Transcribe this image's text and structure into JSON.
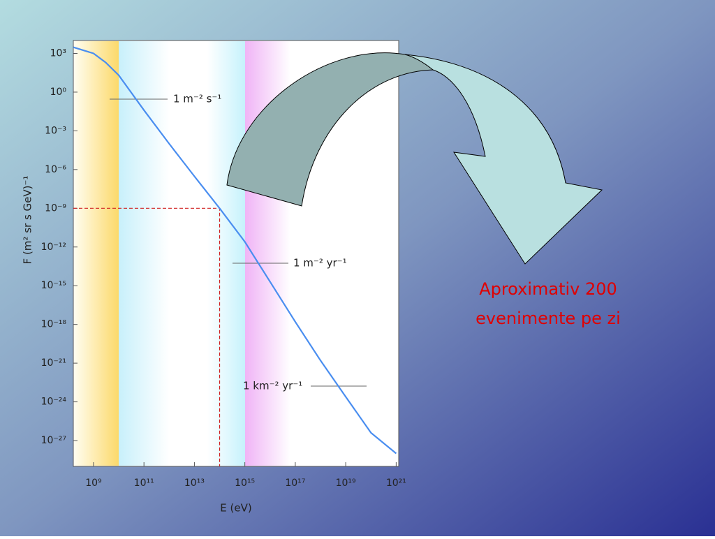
{
  "chart_data": {
    "type": "line",
    "x_label": "E (eV)",
    "y_label": "F (m² sr s GeV)⁻¹",
    "x_scale": "log",
    "y_scale": "log",
    "x": [
      160000000.0,
      1000000000.0,
      3000000000.0,
      10000000000.0,
      100000000000.0,
      1000000000000.0,
      10000000000000.0,
      100000000000000.0,
      1000000000000000.0,
      1e+16,
      1e+17,
      1e+18,
      1e+19,
      1e+20,
      1e+21
    ],
    "values": [
      3000,
      1000,
      200,
      20,
      0.04,
      0.0001,
      3e-07,
      1e-09,
      2.5e-12,
      2e-15,
      1.6e-18,
      1.6e-21,
      2.5e-24,
      4e-27,
      1e-28
    ],
    "color": "#4a8ef0",
    "xlim": [
      158000000.0,
      1.26e+21
    ],
    "ylim": [
      1e-29,
      10000.0
    ],
    "xticks": [
      {
        "value": 1000000000.0,
        "label": "10⁹"
      },
      {
        "value": 100000000000.0,
        "label": "10¹¹"
      },
      {
        "value": 10000000000000.0,
        "label": "10¹³"
      },
      {
        "value": 1000000000000000.0,
        "label": "10¹⁵"
      },
      {
        "value": 1e+17,
        "label": "10¹⁷"
      },
      {
        "value": 1e+19,
        "label": "10¹⁹"
      },
      {
        "value": 1e+21,
        "label": "10²¹"
      }
    ],
    "yticks": [
      {
        "value": 1000.0,
        "label": "10³"
      },
      {
        "value": 1,
        "label": "10⁰"
      },
      {
        "value": 0.001,
        "label": "10⁻³"
      },
      {
        "value": 1e-06,
        "label": "10⁻⁶"
      },
      {
        "value": 1e-09,
        "label": "10⁻⁹"
      },
      {
        "value": 1e-12,
        "label": "10⁻¹²"
      },
      {
        "value": 1e-15,
        "label": "10⁻¹⁵"
      },
      {
        "value": 1e-18,
        "label": "10⁻¹⁸"
      },
      {
        "value": 1e-21,
        "label": "10⁻²¹"
      },
      {
        "value": 1e-24,
        "label": "10⁻²⁴"
      },
      {
        "value": 1e-27,
        "label": "10⁻²⁷"
      }
    ],
    "marker": {
      "x": 100000000000000.0,
      "y": 1e-09,
      "color": "#d02020"
    },
    "annotations": [
      "1 m⁻² s⁻¹",
      "1 m⁻² yr⁻¹",
      "1 km⁻² yr⁻¹"
    ]
  },
  "slide": {
    "text": [
      "Aproximativ 200",
      "evenimente pe zi"
    ]
  }
}
